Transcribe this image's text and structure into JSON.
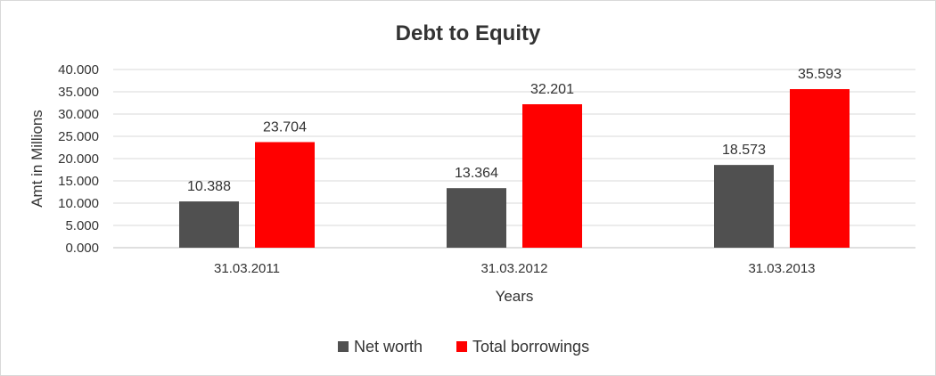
{
  "chart_data": {
    "type": "bar",
    "title": "Debt to Equity",
    "xlabel": "Years",
    "ylabel": "Amt in Millions",
    "categories": [
      "31.03.2011",
      "31.03.2012",
      "31.03.2013"
    ],
    "series": [
      {
        "name": "Net worth",
        "color": "#505050",
        "values": [
          10.388,
          13.364,
          18.573
        ],
        "labels": [
          "10.388",
          "13.364",
          "18.573"
        ]
      },
      {
        "name": "Total borrowings",
        "color": "#ff0000",
        "values": [
          23.704,
          32.201,
          35.593
        ],
        "labels": [
          "23.704",
          "32.201",
          "35.593"
        ]
      }
    ],
    "ylim": [
      0,
      40
    ],
    "yticks": [
      0,
      5,
      10,
      15,
      20,
      25,
      30,
      35,
      40
    ],
    "ytick_labels": [
      "0.000",
      "5.000",
      "10.000",
      "15.000",
      "20.000",
      "25.000",
      "30.000",
      "35.000",
      "40.000"
    ],
    "grid": true,
    "legend_position": "bottom"
  }
}
